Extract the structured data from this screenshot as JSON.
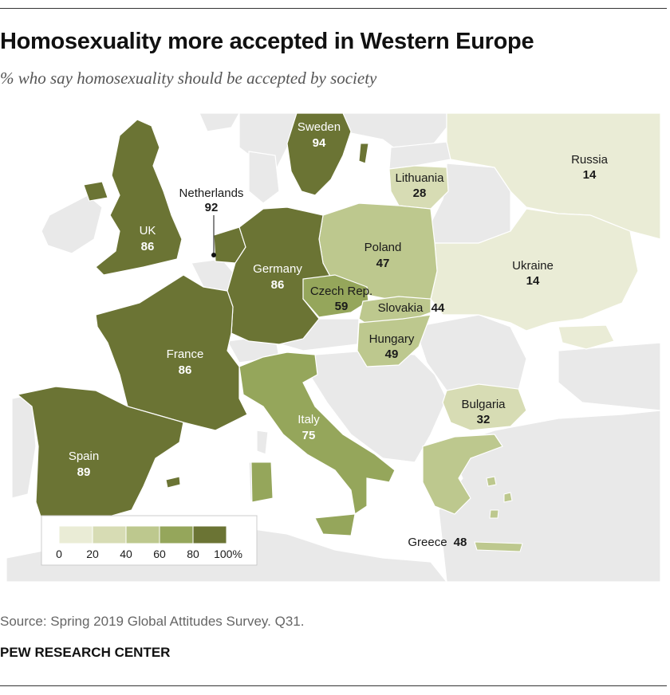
{
  "header": {
    "title": "Homosexuality more accepted in Western Europe",
    "subtitle": "% who say homosexuality should be accepted by society"
  },
  "legend": {
    "ticks": [
      "0",
      "20",
      "40",
      "60",
      "80",
      "100%"
    ],
    "bin_colors": [
      "#eaecd6",
      "#d7dcb4",
      "#bdc88e",
      "#95a65b",
      "#6b7434"
    ]
  },
  "colors": {
    "water": "#ffffff",
    "other_land": "#e9e9e9",
    "border": "#ffffff",
    "dark_text": "#ffffff",
    "light_text": "#1a1a1a"
  },
  "countries": [
    {
      "name": "Sweden",
      "value": "94",
      "pct": 94
    },
    {
      "name": "Netherlands",
      "value": "92",
      "pct": 92
    },
    {
      "name": "UK",
      "value": "86",
      "pct": 86
    },
    {
      "name": "Germany",
      "value": "86",
      "pct": 86
    },
    {
      "name": "France",
      "value": "86",
      "pct": 86
    },
    {
      "name": "Spain",
      "value": "89",
      "pct": 89
    },
    {
      "name": "Italy",
      "value": "75",
      "pct": 75
    },
    {
      "name": "Czech Rep.",
      "value": "59",
      "pct": 59
    },
    {
      "name": "Poland",
      "value": "47",
      "pct": 47
    },
    {
      "name": "Slovakia",
      "value": "44",
      "pct": 44
    },
    {
      "name": "Hungary",
      "value": "49",
      "pct": 49
    },
    {
      "name": "Lithuania",
      "value": "28",
      "pct": 28
    },
    {
      "name": "Bulgaria",
      "value": "32",
      "pct": 32
    },
    {
      "name": "Greece",
      "value": "48",
      "pct": 48
    },
    {
      "name": "Russia",
      "value": "14",
      "pct": 14
    },
    {
      "name": "Ukraine",
      "value": "14",
      "pct": 14
    }
  ],
  "footer": {
    "source": "Source: Spring 2019 Global Attitudes Survey. Q31.",
    "brand": "PEW RESEARCH CENTER"
  }
}
